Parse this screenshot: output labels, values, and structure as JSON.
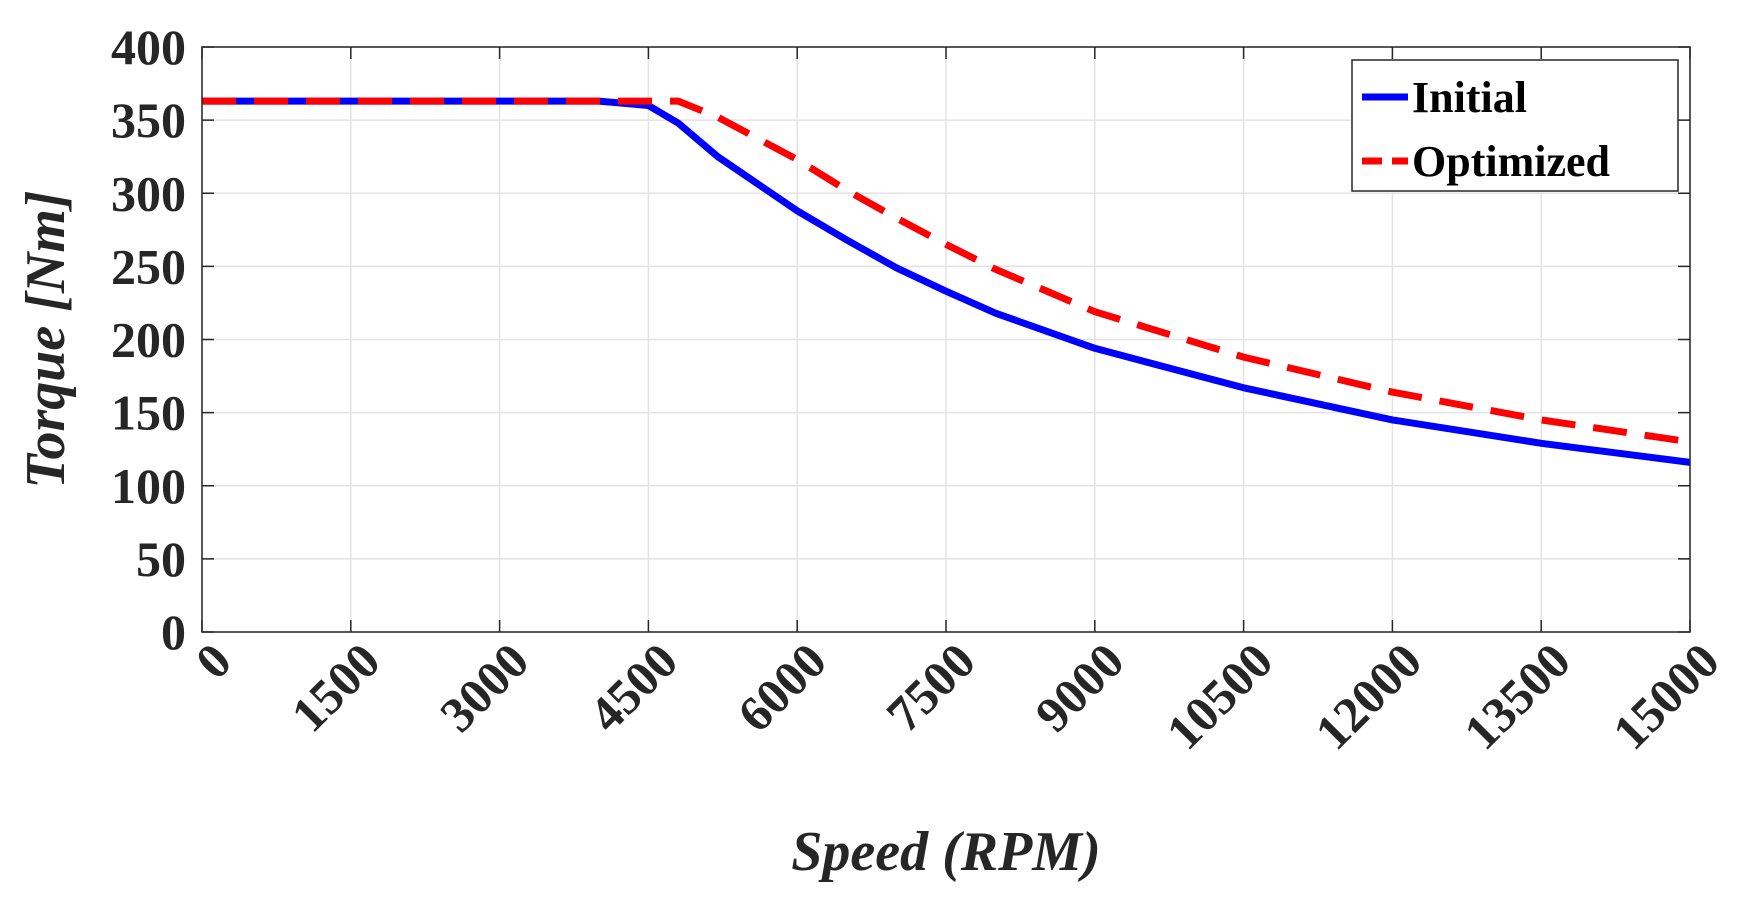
{
  "chart_data": {
    "type": "line",
    "title": "",
    "xlabel": "Speed (RPM)",
    "ylabel": "Torque [Nm]",
    "xlim": [
      0,
      15000
    ],
    "ylim": [
      0,
      400
    ],
    "xticks": [
      0,
      1500,
      3000,
      4500,
      6000,
      7500,
      9000,
      10500,
      12000,
      13500,
      15000
    ],
    "yticks": [
      0,
      50,
      100,
      150,
      200,
      250,
      300,
      350,
      400
    ],
    "grid": true,
    "legend_position": "top-right",
    "series": [
      {
        "name": "Initial",
        "color": "#0000ff",
        "style": "solid",
        "x": [
          0,
          4000,
          4500,
          4800,
          5200,
          6000,
          6500,
          7000,
          7500,
          8000,
          9000,
          10500,
          12000,
          13500,
          15000
        ],
        "y": [
          363,
          363,
          360,
          348,
          325,
          288,
          268,
          249,
          233,
          218,
          194,
          167,
          145,
          129,
          116
        ]
      },
      {
        "name": "Optimized",
        "color": "#ff0000",
        "style": "dashed",
        "x": [
          0,
          4500,
          4800,
          5200,
          6000,
          6500,
          7000,
          7500,
          8000,
          9000,
          10500,
          12000,
          13500,
          15000
        ],
        "y": [
          363,
          363,
          363,
          352,
          323,
          302,
          283,
          265,
          248,
          219,
          188,
          164,
          145,
          130
        ]
      }
    ]
  }
}
